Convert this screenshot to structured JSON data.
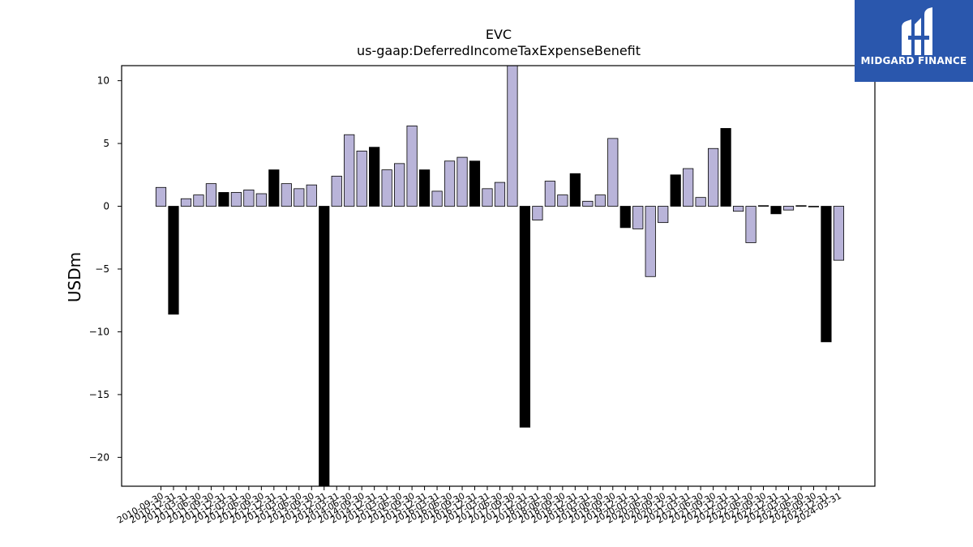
{
  "chart_data": {
    "type": "bar",
    "title": "EVC",
    "subtitle": "us-gaap:DeferredIncomeTaxExpenseBenefit",
    "xlabel": "",
    "ylabel": "USDm",
    "ylim": [
      -22.3,
      11.2
    ],
    "yticks": [
      10,
      5,
      0,
      -5,
      -10,
      -15,
      -20
    ],
    "grid": false,
    "colors": {
      "quarterly": "#b9b4d9",
      "annual": "#000000",
      "edge": "#000000"
    },
    "categories": [
      "2010-09-30",
      "2010-12-31",
      "2011-03-31",
      "2011-06-30",
      "2011-09-30",
      "2011-12-31",
      "2012-03-31",
      "2012-06-30",
      "2012-09-30",
      "2012-12-31",
      "2013-03-31",
      "2013-06-30",
      "2013-09-30",
      "2013-12-31",
      "2014-03-31",
      "2014-06-30",
      "2014-09-30",
      "2014-12-31",
      "2015-03-31",
      "2015-06-30",
      "2015-09-30",
      "2015-12-31",
      "2016-03-31",
      "2016-06-30",
      "2016-09-30",
      "2016-12-31",
      "2017-03-31",
      "2017-06-30",
      "2017-09-30",
      "2017-12-31",
      "2018-03-31",
      "2018-06-30",
      "2018-09-30",
      "2018-12-31",
      "2019-03-31",
      "2019-06-30",
      "2019-09-30",
      "2019-12-31",
      "2020-03-31",
      "2020-06-30",
      "2020-09-30",
      "2020-12-31",
      "2021-03-31",
      "2021-06-30",
      "2021-09-30",
      "2021-12-31",
      "2022-03-31",
      "2022-06-30",
      "2022-09-30",
      "2022-12-31",
      "2023-03-31",
      "2023-06-30",
      "2023-09-30",
      "2023-12-31",
      "2024-03-31"
    ],
    "values": [
      1.5,
      -8.6,
      0.6,
      0.9,
      1.8,
      1.1,
      1.1,
      1.3,
      1.0,
      2.9,
      1.8,
      1.4,
      1.7,
      -22.3,
      2.4,
      5.7,
      4.4,
      4.7,
      2.9,
      3.4,
      6.4,
      2.9,
      1.2,
      3.6,
      3.9,
      3.6,
      1.4,
      1.9,
      11.2,
      -17.6,
      -1.1,
      2.0,
      0.9,
      2.6,
      0.4,
      0.9,
      5.4,
      -1.7,
      -1.8,
      -5.6,
      -1.3,
      2.5,
      3.0,
      0.7,
      4.6,
      6.2,
      -0.4,
      -2.9,
      0.05,
      -0.6,
      -0.3,
      0.05,
      -0.05,
      -10.8,
      -4.3
    ],
    "annual": [
      false,
      true,
      false,
      false,
      false,
      true,
      false,
      false,
      false,
      true,
      false,
      false,
      false,
      true,
      false,
      false,
      false,
      true,
      false,
      false,
      false,
      true,
      false,
      false,
      false,
      true,
      false,
      false,
      false,
      true,
      false,
      false,
      false,
      true,
      false,
      false,
      false,
      true,
      false,
      false,
      false,
      true,
      false,
      false,
      false,
      true,
      false,
      false,
      false,
      true,
      false,
      false,
      false,
      true,
      false
    ]
  },
  "branding": {
    "logo_text": "MIDGARD FINANCE"
  }
}
